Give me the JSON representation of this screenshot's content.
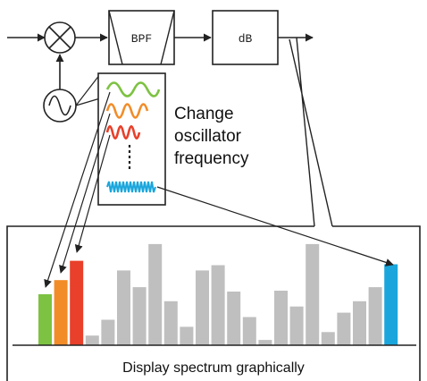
{
  "blocks": {
    "bpf_label": "BPF",
    "db_label": "dB"
  },
  "note": {
    "line1": "Change",
    "line2": "oscillator",
    "line3": "frequency"
  },
  "caption": "Display spectrum graphically",
  "colors": {
    "stroke": "#222222",
    "wave_green": "#7dc242",
    "wave_orange": "#f28c28",
    "wave_red": "#e8402a",
    "wave_blue": "#1aa6dc",
    "bar_gray": "#bfbfbf"
  },
  "icons": {
    "mixer": "mixer-icon",
    "oscillator": "oscillator-icon"
  },
  "chart_data": {
    "type": "bar",
    "values": [
      58,
      74,
      96,
      11,
      29,
      85,
      66,
      115,
      50,
      21,
      85,
      91,
      61,
      32,
      6,
      62,
      44,
      115,
      15,
      37,
      50,
      66,
      92
    ],
    "colors": [
      "#7dc242",
      "#f28c28",
      "#e8402a",
      "#bfbfbf",
      "#bfbfbf",
      "#bfbfbf",
      "#bfbfbf",
      "#bfbfbf",
      "#bfbfbf",
      "#bfbfbf",
      "#bfbfbf",
      "#bfbfbf",
      "#bfbfbf",
      "#bfbfbf",
      "#bfbfbf",
      "#bfbfbf",
      "#bfbfbf",
      "#bfbfbf",
      "#bfbfbf",
      "#bfbfbf",
      "#bfbfbf",
      "#bfbfbf",
      "#1aa6dc"
    ],
    "ylim": [
      0,
      120
    ],
    "grid": false
  }
}
